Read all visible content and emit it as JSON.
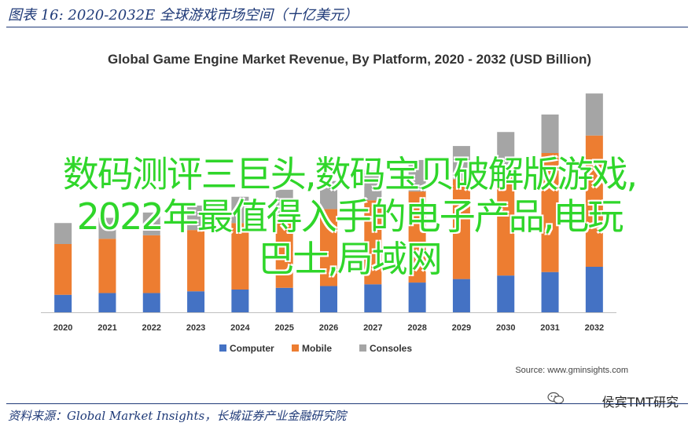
{
  "figure_title": "图表 16:  2020-2032E 全球游戏市场空间（十亿美元）",
  "overlay_text": [
    "数码测评三巨头,数码宝贝破解版游戏,",
    "2022年最值得入手的电子产品,电玩",
    "巴士,局域网"
  ],
  "source_chart": "Source: www.gminsights.com",
  "source_doc": "资料来源：Global Market Insights，长城证券产业金融研究院",
  "watermark": "侯宾TMT研究",
  "colors": {
    "computer": "#4472c4",
    "mobile": "#ed7d31",
    "consoles": "#a5a5a5",
    "title_blue": "#1f3a78",
    "overlay_green": "#2fd62a"
  },
  "chart_data": {
    "type": "bar",
    "stacked": true,
    "title": "Global Game Engine Market Revenue, By Platform, 2020 - 2032 (USD Billion)",
    "categories": [
      "2020",
      "2021",
      "2022",
      "2023",
      "2024",
      "2025",
      "2026",
      "2027",
      "2028",
      "2029",
      "2030",
      "2031",
      "2032"
    ],
    "series": [
      {
        "name": "Computer",
        "color": "#4472c4",
        "values": [
          1.0,
          1.1,
          1.1,
          1.2,
          1.3,
          1.4,
          1.5,
          1.6,
          1.7,
          1.9,
          2.1,
          2.3,
          2.6
        ]
      },
      {
        "name": "Mobile",
        "color": "#ed7d31",
        "values": [
          2.9,
          3.1,
          3.3,
          3.5,
          3.8,
          4.1,
          4.4,
          4.8,
          5.2,
          5.7,
          6.2,
          6.8,
          7.5
        ]
      },
      {
        "name": "Consoles",
        "color": "#a5a5a5",
        "values": [
          1.2,
          1.2,
          1.3,
          1.4,
          1.5,
          1.5,
          1.6,
          1.7,
          1.8,
          1.9,
          2.0,
          2.2,
          2.4
        ]
      }
    ],
    "ylim": [
      0,
      13
    ],
    "grid": false,
    "legend_position": "bottom",
    "xlabel": "",
    "ylabel": ""
  }
}
